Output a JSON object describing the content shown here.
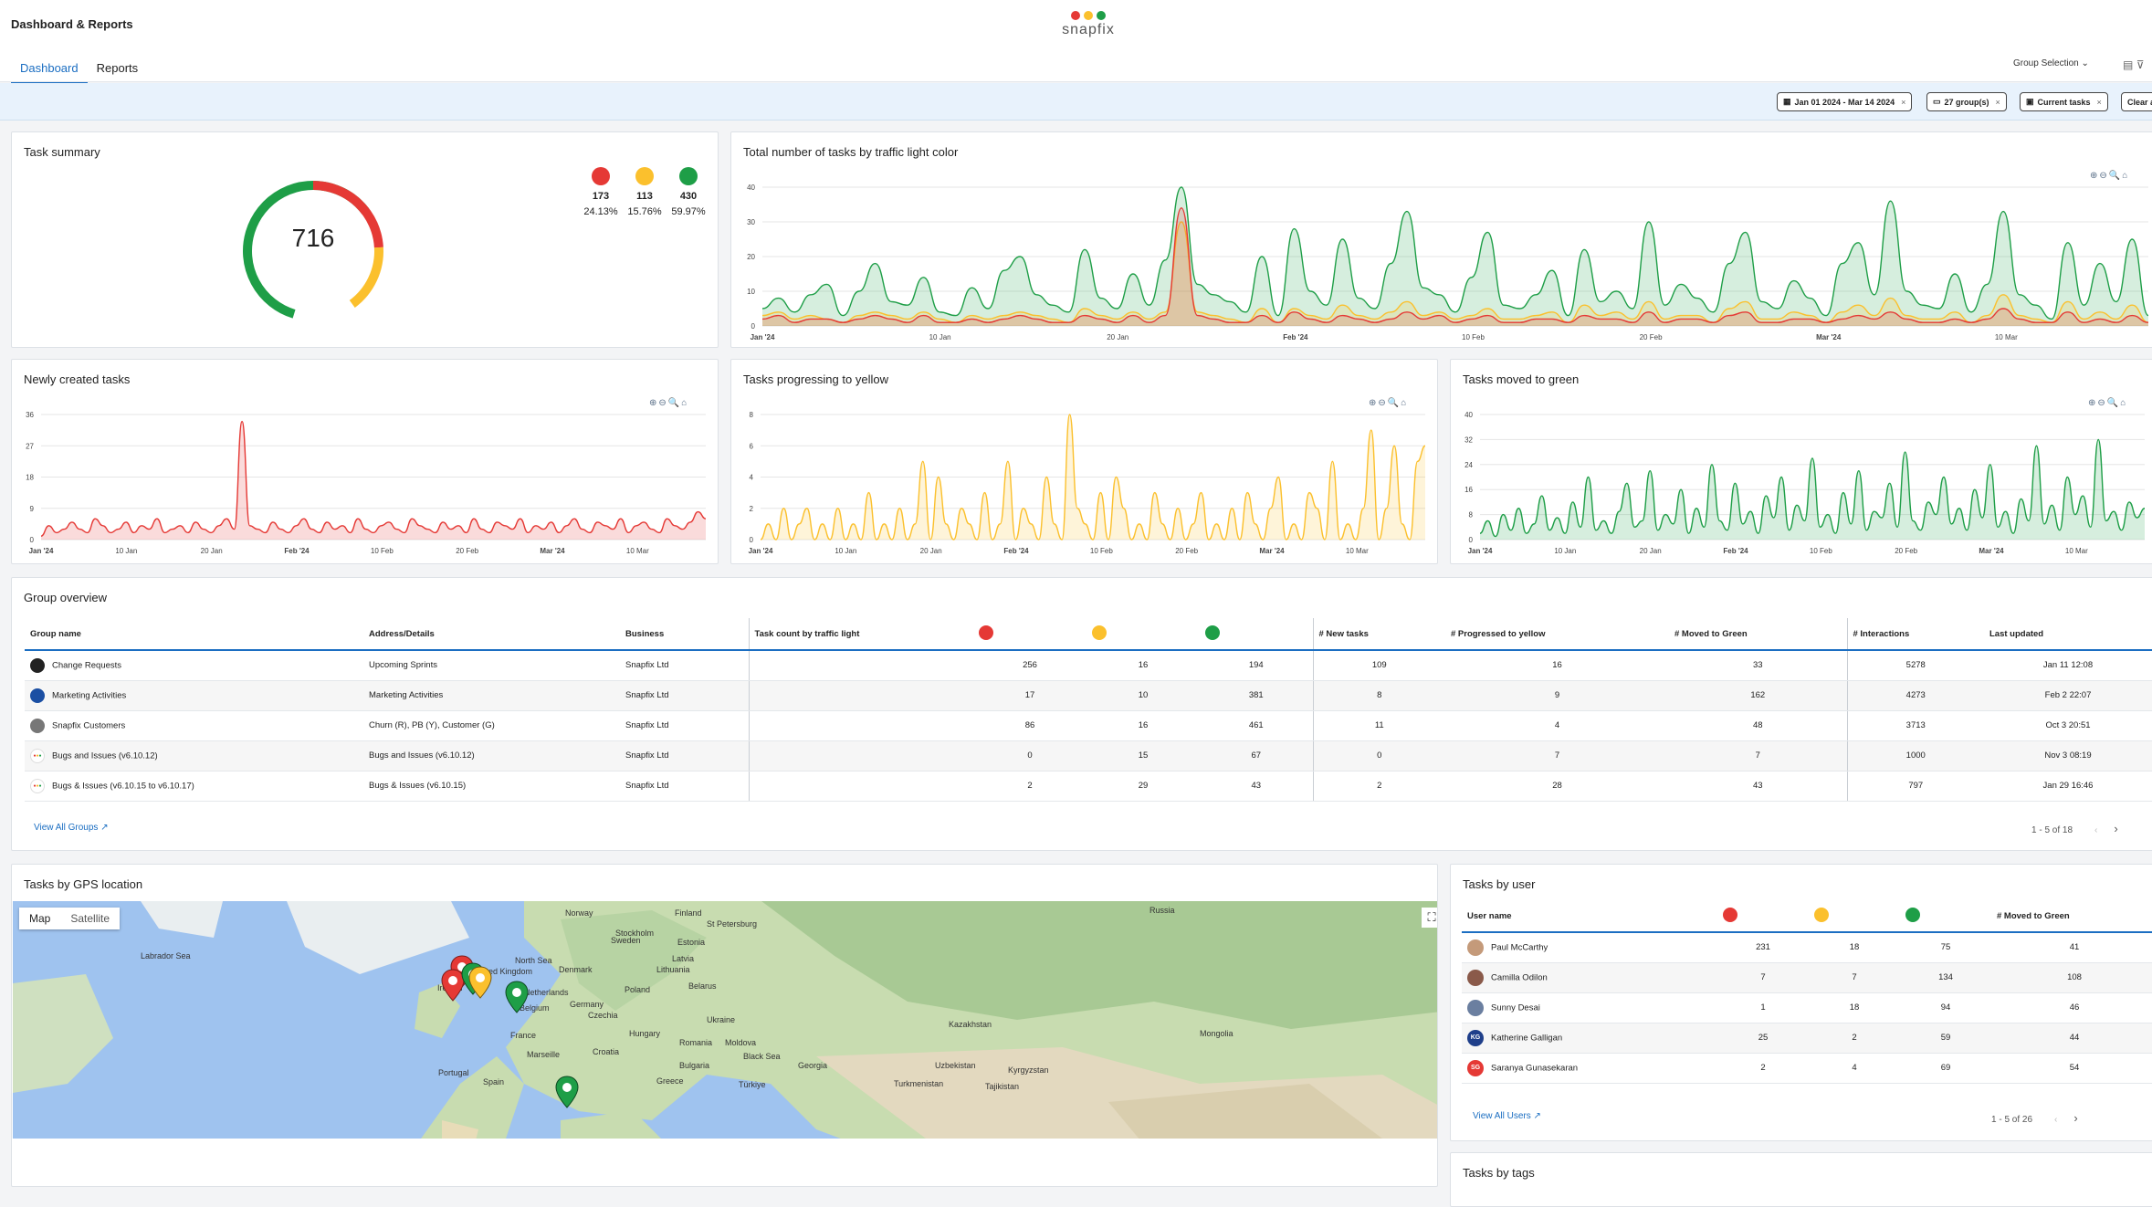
{
  "app": {
    "title": "Dashboard & Reports",
    "logo_text": "snapfix"
  },
  "tabs": [
    {
      "label": "Dashboard"
    },
    {
      "label": "Reports"
    }
  ],
  "header": {
    "group_selection": "Group Selection"
  },
  "filters": {
    "date": "Jan 01 2024 - Mar 14 2024",
    "groups": "27 group(s)",
    "tasks": "Current tasks",
    "clear": "Clear a"
  },
  "colors": {
    "red": "#e53935",
    "yellow": "#fbc02d",
    "green": "#1e9e47",
    "accent": "#1b6ec2"
  },
  "task_summary": {
    "title": "Task summary",
    "total": "716",
    "items": [
      {
        "count": "173",
        "pct": "24.13%"
      },
      {
        "count": "113",
        "pct": "15.76%"
      },
      {
        "count": "430",
        "pct": "59.97%"
      }
    ]
  },
  "chart_titles": {
    "total": "Total number of tasks by traffic light color",
    "new": "Newly created tasks",
    "yellow": "Tasks progressing to yellow",
    "green": "Tasks moved to green"
  },
  "chart_data": [
    {
      "type": "area",
      "title": "Total number of tasks by traffic light color",
      "x_ticks": [
        "Jan '24",
        "10 Jan",
        "20 Jan",
        "Feb '24",
        "10 Feb",
        "20 Feb",
        "Mar '24",
        "10 Mar"
      ],
      "y_ticks": [
        "0",
        "10",
        "20",
        "30",
        "40"
      ],
      "ylim": [
        0,
        40
      ],
      "series": [
        {
          "color": "#1e9e47",
          "values": [
            5,
            8,
            4,
            9,
            12,
            3,
            10,
            18,
            7,
            6,
            14,
            4,
            3,
            11,
            5,
            16,
            20,
            9,
            6,
            4,
            22,
            8,
            5,
            15,
            6,
            19,
            40,
            12,
            9,
            7,
            4,
            20,
            3,
            28,
            10,
            6,
            25,
            8,
            5,
            18,
            33,
            11,
            9,
            4,
            14,
            27,
            6,
            5,
            9,
            16,
            3,
            22,
            7,
            10,
            5,
            30,
            6,
            12,
            8,
            4,
            18,
            27,
            7,
            5,
            13,
            8,
            3,
            18,
            24,
            9,
            36,
            10,
            6,
            5,
            15,
            4,
            12,
            33,
            9,
            6,
            2,
            24,
            6,
            18,
            7,
            25,
            3
          ]
        },
        {
          "color": "#fbc02d",
          "values": [
            3,
            4,
            2,
            3,
            2,
            1,
            3,
            4,
            3,
            2,
            4,
            2,
            1,
            3,
            2,
            3,
            4,
            3,
            2,
            1,
            5,
            3,
            2,
            4,
            2,
            4,
            30,
            4,
            3,
            2,
            1,
            5,
            1,
            5,
            3,
            2,
            6,
            3,
            2,
            4,
            7,
            3,
            4,
            2,
            3,
            5,
            2,
            2,
            3,
            4,
            1,
            6,
            3,
            4,
            2,
            7,
            2,
            3,
            3,
            1,
            5,
            7,
            2,
            2,
            4,
            3,
            1,
            4,
            6,
            3,
            8,
            3,
            2,
            2,
            4,
            1,
            3,
            9,
            3,
            2,
            1,
            7,
            2,
            4,
            2,
            6,
            1
          ]
        },
        {
          "color": "#e53935",
          "values": [
            2,
            3,
            1,
            2,
            2,
            1,
            2,
            3,
            2,
            1,
            3,
            1,
            1,
            2,
            1,
            2,
            3,
            2,
            1,
            1,
            3,
            2,
            1,
            3,
            1,
            3,
            34,
            3,
            2,
            1,
            1,
            3,
            1,
            4,
            2,
            1,
            3,
            2,
            1,
            2,
            4,
            2,
            3,
            1,
            2,
            3,
            1,
            1,
            2,
            2,
            1,
            3,
            2,
            2,
            1,
            4,
            1,
            2,
            2,
            1,
            3,
            4,
            1,
            1,
            2,
            2,
            1,
            2,
            3,
            2,
            4,
            2,
            1,
            1,
            2,
            1,
            2,
            5,
            2,
            1,
            1,
            4,
            1,
            2,
            1,
            3,
            1
          ]
        }
      ]
    },
    {
      "type": "area",
      "title": "Newly created tasks",
      "x_ticks": [
        "Jan '24",
        "10 Jan",
        "20 Jan",
        "Feb '24",
        "10 Feb",
        "20 Feb",
        "Mar '24",
        "10 Mar"
      ],
      "y_ticks": [
        "0",
        "9",
        "18",
        "27",
        "36"
      ],
      "ylim": [
        0,
        36
      ],
      "series": [
        {
          "color": "#e53935",
          "values": [
            1,
            4,
            2,
            3,
            5,
            3,
            2,
            6,
            4,
            2,
            3,
            5,
            2,
            4,
            3,
            6,
            2,
            3,
            4,
            2,
            5,
            3,
            2,
            4,
            6,
            3,
            34,
            4,
            3,
            2,
            5,
            3,
            2,
            4,
            6,
            3,
            2,
            5,
            3,
            4,
            2,
            6,
            3,
            2,
            4,
            5,
            3,
            2,
            6,
            4,
            3,
            2,
            5,
            3,
            4,
            2,
            6,
            3,
            2,
            5,
            4,
            3,
            6,
            2,
            4,
            3,
            5,
            2,
            4,
            6,
            3,
            2,
            5,
            4,
            3,
            6,
            2,
            4,
            5,
            3,
            2,
            6,
            4,
            3,
            5,
            8,
            6
          ]
        }
      ]
    },
    {
      "type": "area",
      "title": "Tasks progressing to yellow",
      "x_ticks": [
        "Jan '24",
        "10 Jan",
        "20 Jan",
        "Feb '24",
        "10 Feb",
        "20 Feb",
        "Mar '24",
        "10 Mar"
      ],
      "y_ticks": [
        "0",
        "2",
        "4",
        "6",
        "8"
      ],
      "ylim": [
        0,
        8
      ],
      "series": [
        {
          "color": "#fbc02d",
          "values": [
            0,
            1,
            0,
            2,
            0,
            1,
            2,
            0,
            1,
            0,
            2,
            0,
            1,
            0,
            3,
            0,
            1,
            0,
            2,
            0,
            1,
            5,
            0,
            4,
            1,
            0,
            2,
            1,
            0,
            3,
            0,
            1,
            5,
            0,
            2,
            1,
            0,
            4,
            1,
            0,
            8,
            2,
            1,
            0,
            3,
            0,
            4,
            2,
            0,
            1,
            0,
            3,
            1,
            0,
            2,
            0,
            1,
            3,
            0,
            1,
            0,
            2,
            0,
            3,
            1,
            0,
            2,
            4,
            0,
            1,
            0,
            3,
            2,
            0,
            5,
            0,
            1,
            0,
            2,
            7,
            0,
            2,
            6,
            1,
            0,
            5,
            6
          ]
        }
      ]
    },
    {
      "type": "area",
      "title": "Tasks moved to green",
      "x_ticks": [
        "Jan '24",
        "10 Jan",
        "20 Jan",
        "Feb '24",
        "10 Feb",
        "20 Feb",
        "Mar '24",
        "10 Mar"
      ],
      "y_ticks": [
        "0",
        "8",
        "16",
        "24",
        "32",
        "40"
      ],
      "ylim": [
        0,
        40
      ],
      "series": [
        {
          "color": "#1e9e47",
          "values": [
            2,
            6,
            1,
            8,
            3,
            10,
            2,
            5,
            14,
            3,
            7,
            2,
            12,
            4,
            20,
            3,
            6,
            2,
            9,
            18,
            4,
            6,
            22,
            3,
            8,
            5,
            16,
            2,
            10,
            4,
            24,
            6,
            3,
            18,
            5,
            9,
            2,
            14,
            7,
            20,
            3,
            11,
            6,
            26,
            4,
            8,
            2,
            15,
            5,
            22,
            3,
            9,
            7,
            18,
            4,
            28,
            6,
            3,
            12,
            8,
            20,
            5,
            10,
            3,
            16,
            7,
            24,
            4,
            9,
            2,
            13,
            6,
            30,
            5,
            11,
            3,
            20,
            8,
            14,
            4,
            32,
            6,
            9,
            3,
            12,
            7,
            10
          ]
        }
      ]
    }
  ],
  "group_overview": {
    "title": "Group overview",
    "headers": {
      "name": "Group name",
      "address": "Address/Details",
      "business": "Business",
      "traffic": "Task count by traffic light",
      "new": "# New tasks",
      "yellow": "# Progressed to yellow",
      "green": "# Moved to Green",
      "interactions": "# Interactions",
      "updated": "Last updated"
    },
    "rows": [
      {
        "name": "Change Requests",
        "address": "Upcoming Sprints",
        "business": "Snapfix Ltd",
        "red": "256",
        "yellow": "16",
        "green": "194",
        "new": "109",
        "prog": "16",
        "moved": "33",
        "inter": "5278",
        "updated": "Jan 11 12:08",
        "av": "#222"
      },
      {
        "name": "Marketing Activities",
        "address": "Marketing Activities",
        "business": "Snapfix Ltd",
        "red": "17",
        "yellow": "10",
        "green": "381",
        "new": "8",
        "prog": "9",
        "moved": "162",
        "inter": "4273",
        "updated": "Feb 2 22:07",
        "av": "#1b4fa3"
      },
      {
        "name": "Snapfix Customers",
        "address": "Churn (R), PB (Y), Customer (G)",
        "business": "Snapfix Ltd",
        "red": "86",
        "yellow": "16",
        "green": "461",
        "new": "11",
        "prog": "4",
        "moved": "48",
        "inter": "3713",
        "updated": "Oct 3 20:51",
        "av": "#777"
      },
      {
        "name": "Bugs and Issues (v6.10.12)",
        "address": "Bugs and Issues (v6.10.12)",
        "business": "Snapfix Ltd",
        "red": "0",
        "yellow": "15",
        "green": "67",
        "new": "0",
        "prog": "7",
        "moved": "7",
        "inter": "1000",
        "updated": "Nov 3 08:19",
        "av": "dots"
      },
      {
        "name": "Bugs & Issues (v6.10.15 to v6.10.17)",
        "address": "Bugs & Issues (v6.10.15)",
        "business": "Snapfix Ltd",
        "red": "2",
        "yellow": "29",
        "green": "43",
        "new": "2",
        "prog": "28",
        "moved": "43",
        "inter": "797",
        "updated": "Jan 29 16:46",
        "av": "dots"
      }
    ],
    "view_all": "View All Groups",
    "pager": "1 - 5 of 18"
  },
  "map": {
    "title": "Tasks by GPS location",
    "btn_map": "Map",
    "btn_sat": "Satellite",
    "labels": [
      "Norway",
      "Finland",
      "Russia",
      "Sweden",
      "Stockholm",
      "St Petersburg",
      "Estonia",
      "Latvia",
      "Lithuania",
      "Denmark",
      "North Sea",
      "Belarus",
      "Poland",
      "Netherlands",
      "Belgium",
      "Germany",
      "Czechia",
      "Ukraine",
      "Moldova",
      "Romania",
      "Hungary",
      "France",
      "Croatia",
      "Bulgaria",
      "Black Sea",
      "Georgia",
      "Kazakhstan",
      "Uzbekistan",
      "Kyrgyzstan",
      "Tajikistan",
      "Turkmenistan",
      "Mongolia",
      "Türkiye",
      "Greece",
      "Spain",
      "Portugal",
      "Marseille",
      "Labrador Sea",
      "Ireland",
      "United Kingdom"
    ]
  },
  "users": {
    "title": "Tasks by user",
    "headers": {
      "name": "User name",
      "moved": "# Moved to Green"
    },
    "rows": [
      {
        "name": "Paul McCarthy",
        "red": "231",
        "yellow": "18",
        "green": "75",
        "moved": "41",
        "init": "",
        "av": "#c49a7a"
      },
      {
        "name": "Camilla Odilon",
        "red": "7",
        "yellow": "7",
        "green": "134",
        "moved": "108",
        "init": "",
        "av": "#8a5a4a"
      },
      {
        "name": "Sunny Desai",
        "red": "1",
        "yellow": "18",
        "green": "94",
        "moved": "46",
        "init": "",
        "av": "#6b7fa0"
      },
      {
        "name": "Katherine Galligan",
        "red": "25",
        "yellow": "2",
        "green": "59",
        "moved": "44",
        "init": "KG",
        "av": "#1f3f8a"
      },
      {
        "name": "Saranya Gunasekaran",
        "red": "2",
        "yellow": "4",
        "green": "69",
        "moved": "54",
        "init": "SG",
        "av": "#e53935"
      }
    ],
    "view_all": "View All Users",
    "pager": "1 - 5 of 26"
  },
  "tags": {
    "title": "Tasks by tags"
  }
}
